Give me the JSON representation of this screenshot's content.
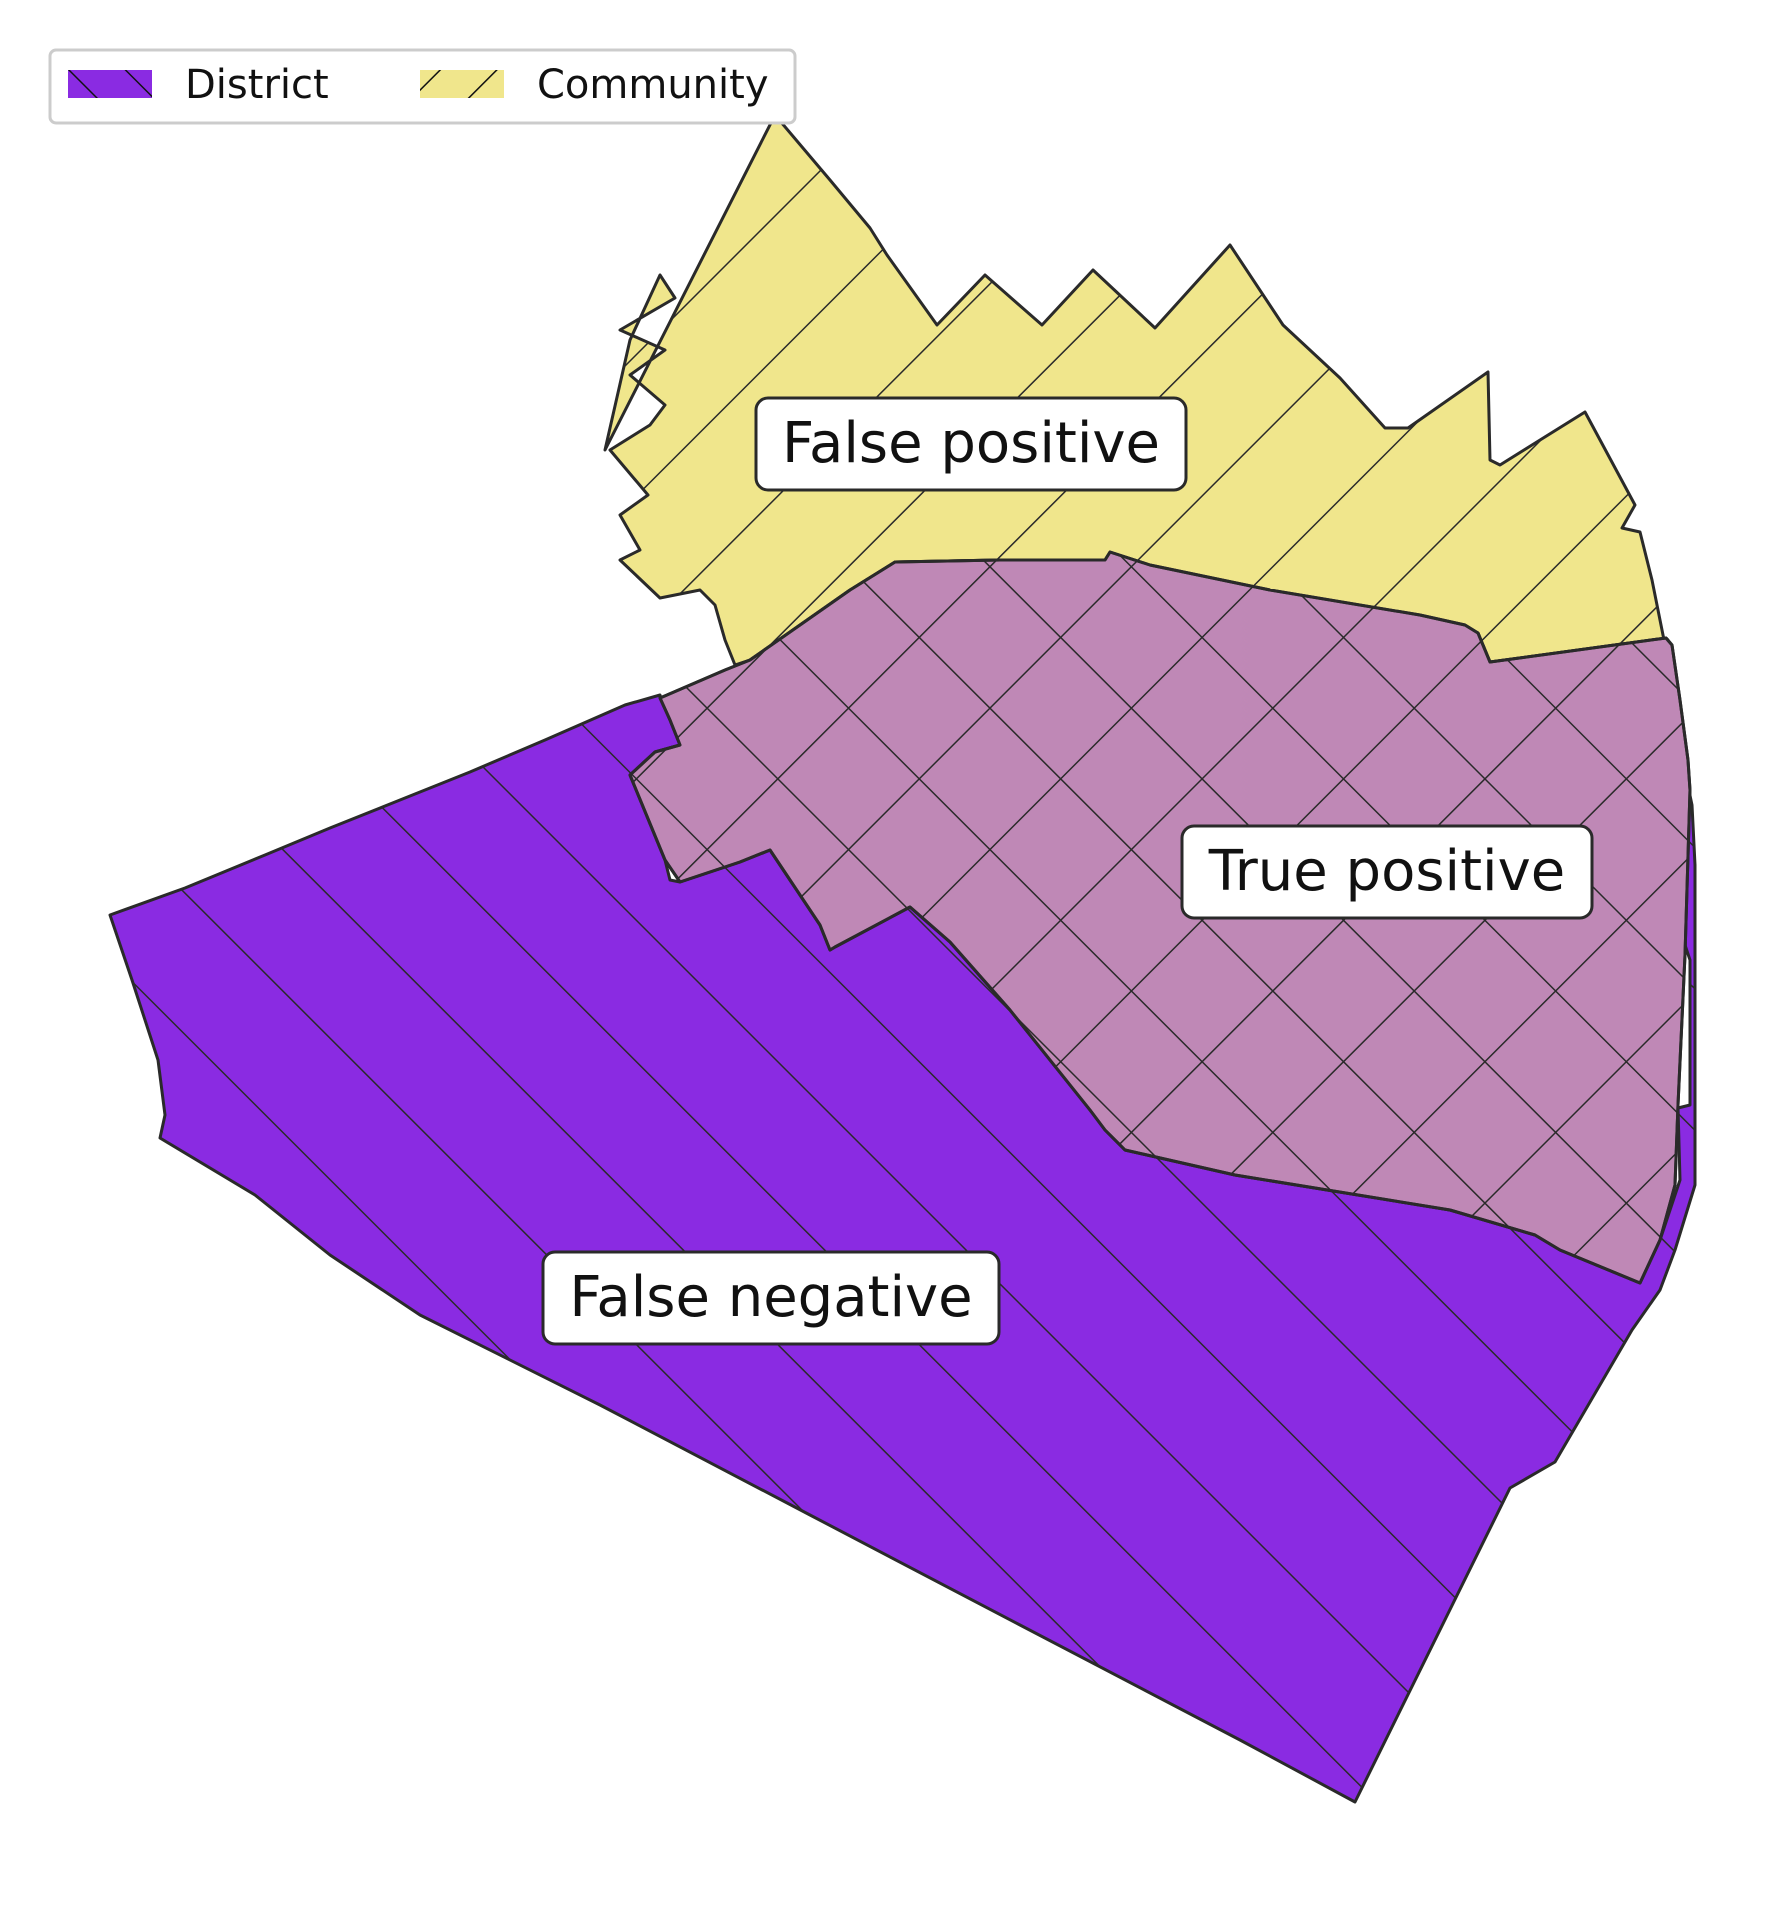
{
  "legend": {
    "placement": "top-left",
    "items": [
      {
        "label": "District",
        "color": "#8a2be2",
        "hatch": "backslash"
      },
      {
        "label": "Community",
        "color": "#f0e68c",
        "hatch": "slash"
      }
    ]
  },
  "regions": {
    "false_positive": {
      "label": "False positive",
      "color": "#f0e68c"
    },
    "true_positive": {
      "label": "True positive",
      "color": "#bf88b6"
    },
    "false_negative": {
      "label": "False negative",
      "color": "#8a2be2"
    }
  },
  "colors": {
    "outline": "#2a2a2a",
    "label_box_fill": "#ffffff",
    "legend_border": "#cccccc"
  }
}
